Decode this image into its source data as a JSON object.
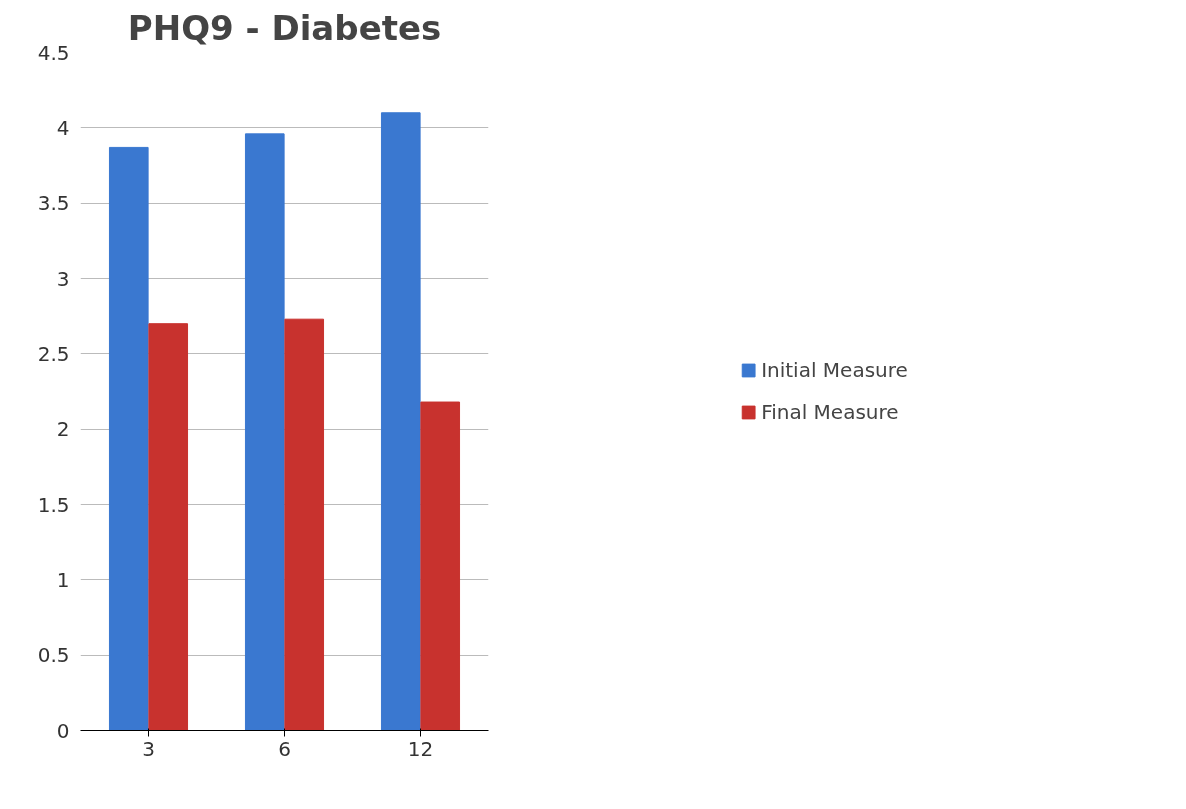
{
  "chart_data": {
    "type": "bar",
    "title": "PHQ9 - Diabetes",
    "categories": [
      "3",
      "6",
      "12"
    ],
    "series": [
      {
        "name": "Initial Measure",
        "color": "#3a78d0",
        "values": [
          3.87,
          3.96,
          4.1
        ]
      },
      {
        "name": "Final Measure",
        "color": "#c8322e",
        "values": [
          2.7,
          2.73,
          2.18
        ]
      }
    ],
    "ylim": [
      0,
      4.5
    ],
    "yticks": [
      0,
      {
        "value": 0.5,
        "label": "0.5"
      },
      1,
      {
        "value": 1.5,
        "label": "1.5"
      },
      2,
      {
        "value": 2.5,
        "label": "2.5"
      },
      3,
      {
        "value": 3.5,
        "label": "3.5"
      },
      4,
      {
        "value": 4.5,
        "label": "4.5"
      }
    ],
    "grid": "y",
    "legend": "right"
  }
}
